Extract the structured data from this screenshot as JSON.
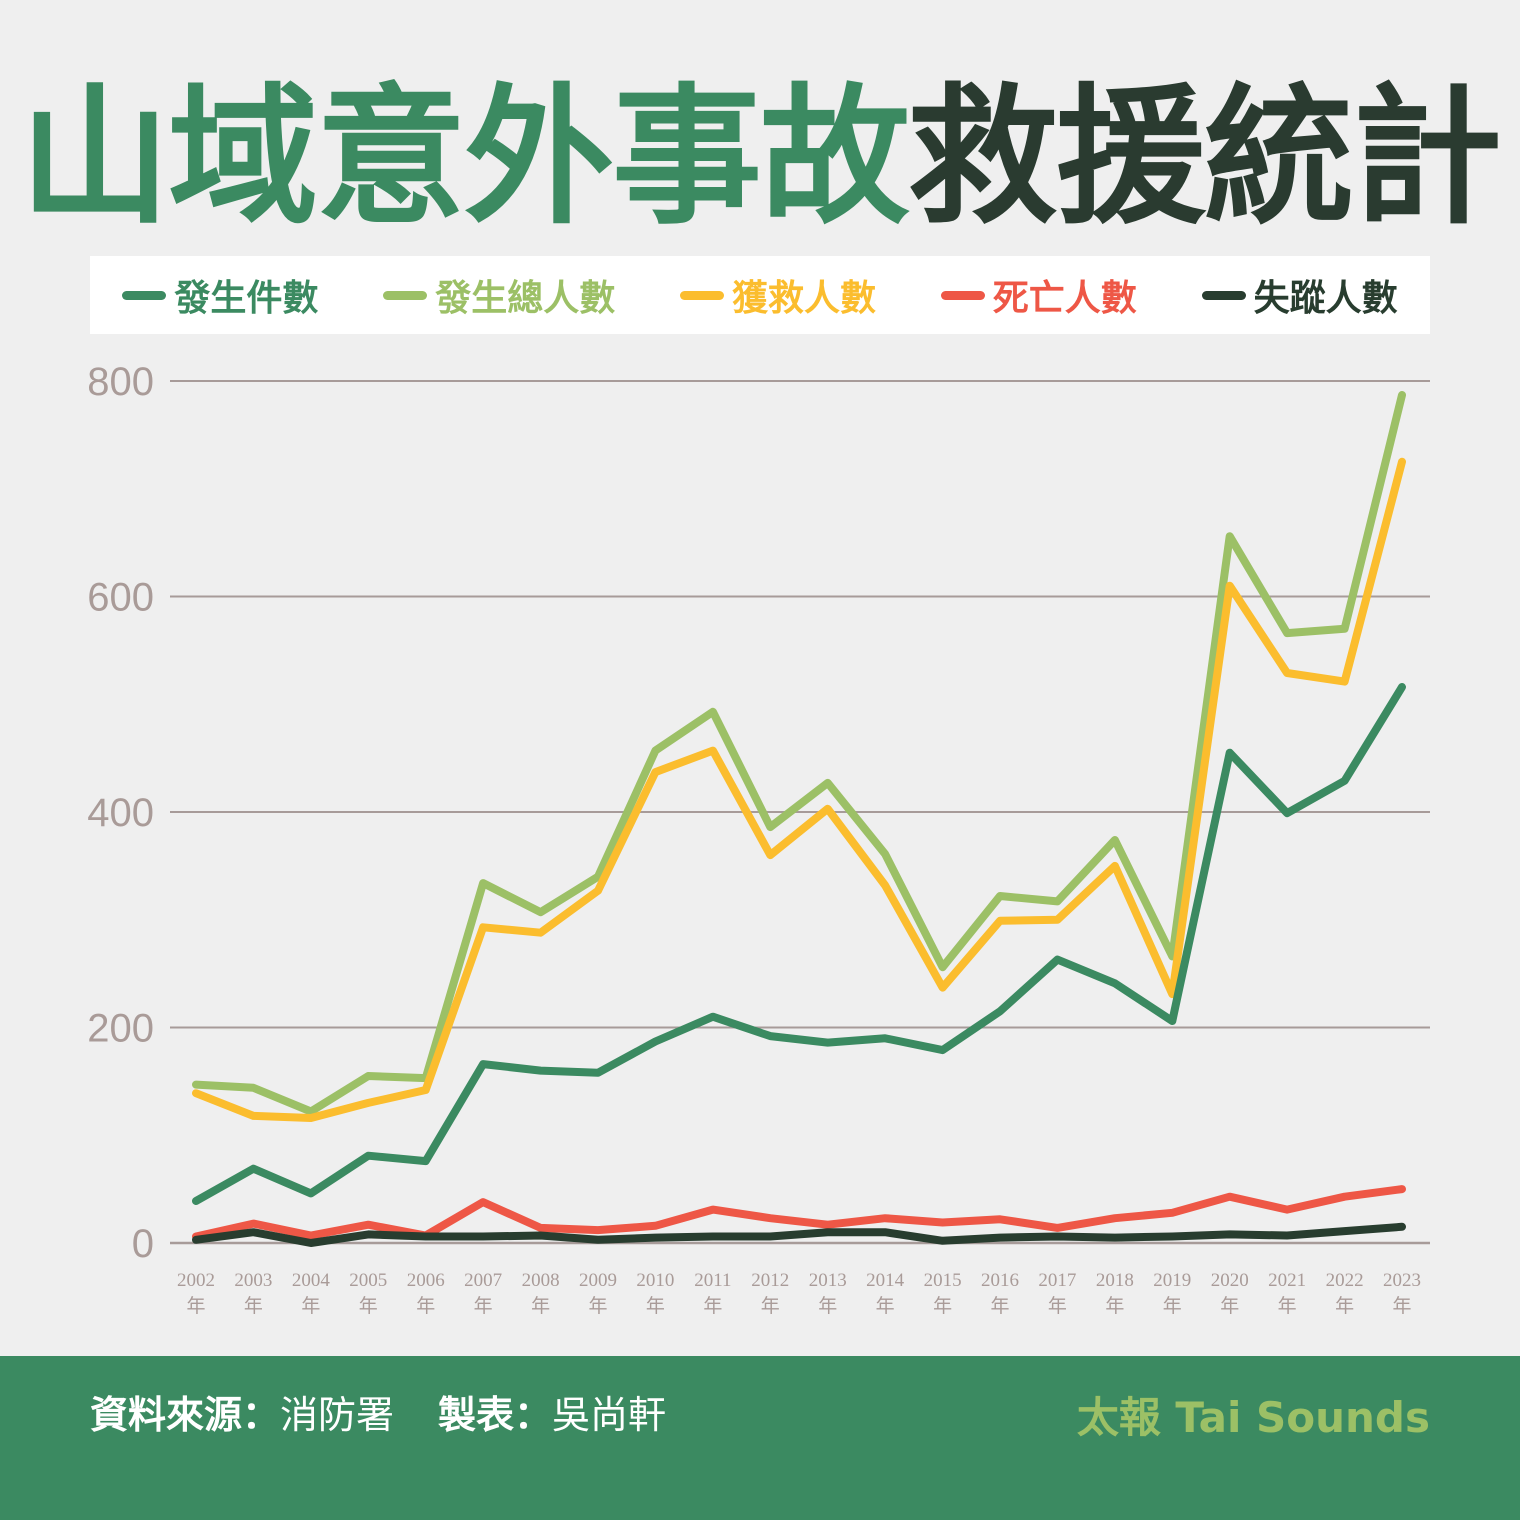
{
  "title": {
    "part1": "山域意外事故",
    "part2": "救援統計"
  },
  "colors": {
    "title_green": "#3b8a61",
    "title_dark": "#2a3b30",
    "footer_bg": "#3b8a61",
    "brand": "#9cc066",
    "grid": "#a79b99",
    "axis_text": "#a99b98"
  },
  "footer": {
    "source_label": "資料來源：",
    "source_value": "消防署",
    "author_label": "製表：",
    "author_value": "吳尚軒",
    "brand": "太報 Tai Sounds"
  },
  "chart_data": {
    "type": "line",
    "x": [
      "2002",
      "2003",
      "2004",
      "2005",
      "2006",
      "2007",
      "2008",
      "2009",
      "2010",
      "2011",
      "2012",
      "2013",
      "2014",
      "2015",
      "2016",
      "2017",
      "2018",
      "2019",
      "2020",
      "2021",
      "2022",
      "2023"
    ],
    "x_suffix": "年",
    "ylim": [
      0,
      800
    ],
    "yticks": [
      0,
      200,
      400,
      600,
      800
    ],
    "grid": true,
    "legend_position": "top",
    "series": [
      {
        "name": "發生件數",
        "color": "#3b8a61",
        "values": [
          39,
          69,
          46,
          81,
          76,
          166,
          160,
          158,
          187,
          210,
          192,
          186,
          190,
          179,
          215,
          263,
          241,
          206,
          455,
          399,
          429,
          516
        ]
      },
      {
        "name": "發生總人數",
        "color": "#9cc066",
        "values": [
          147,
          144,
          122,
          155,
          153,
          334,
          307,
          340,
          457,
          493,
          386,
          427,
          361,
          256,
          322,
          317,
          374,
          266,
          656,
          566,
          570,
          787
        ]
      },
      {
        "name": "獲救人數",
        "color": "#fbbd2e",
        "values": [
          139,
          118,
          116,
          130,
          142,
          293,
          288,
          327,
          437,
          457,
          360,
          403,
          332,
          237,
          299,
          300,
          350,
          231,
          610,
          529,
          521,
          725
        ]
      },
      {
        "name": "死亡人數",
        "color": "#ee5746",
        "values": [
          6,
          18,
          7,
          17,
          7,
          38,
          14,
          12,
          16,
          31,
          23,
          17,
          23,
          19,
          22,
          14,
          23,
          28,
          43,
          31,
          43,
          50
        ]
      },
      {
        "name": "失蹤人數",
        "color": "#283d2f",
        "values": [
          3,
          10,
          0,
          8,
          6,
          6,
          7,
          3,
          5,
          6,
          6,
          10,
          10,
          2,
          5,
          6,
          5,
          6,
          8,
          7,
          11,
          15
        ]
      }
    ]
  }
}
